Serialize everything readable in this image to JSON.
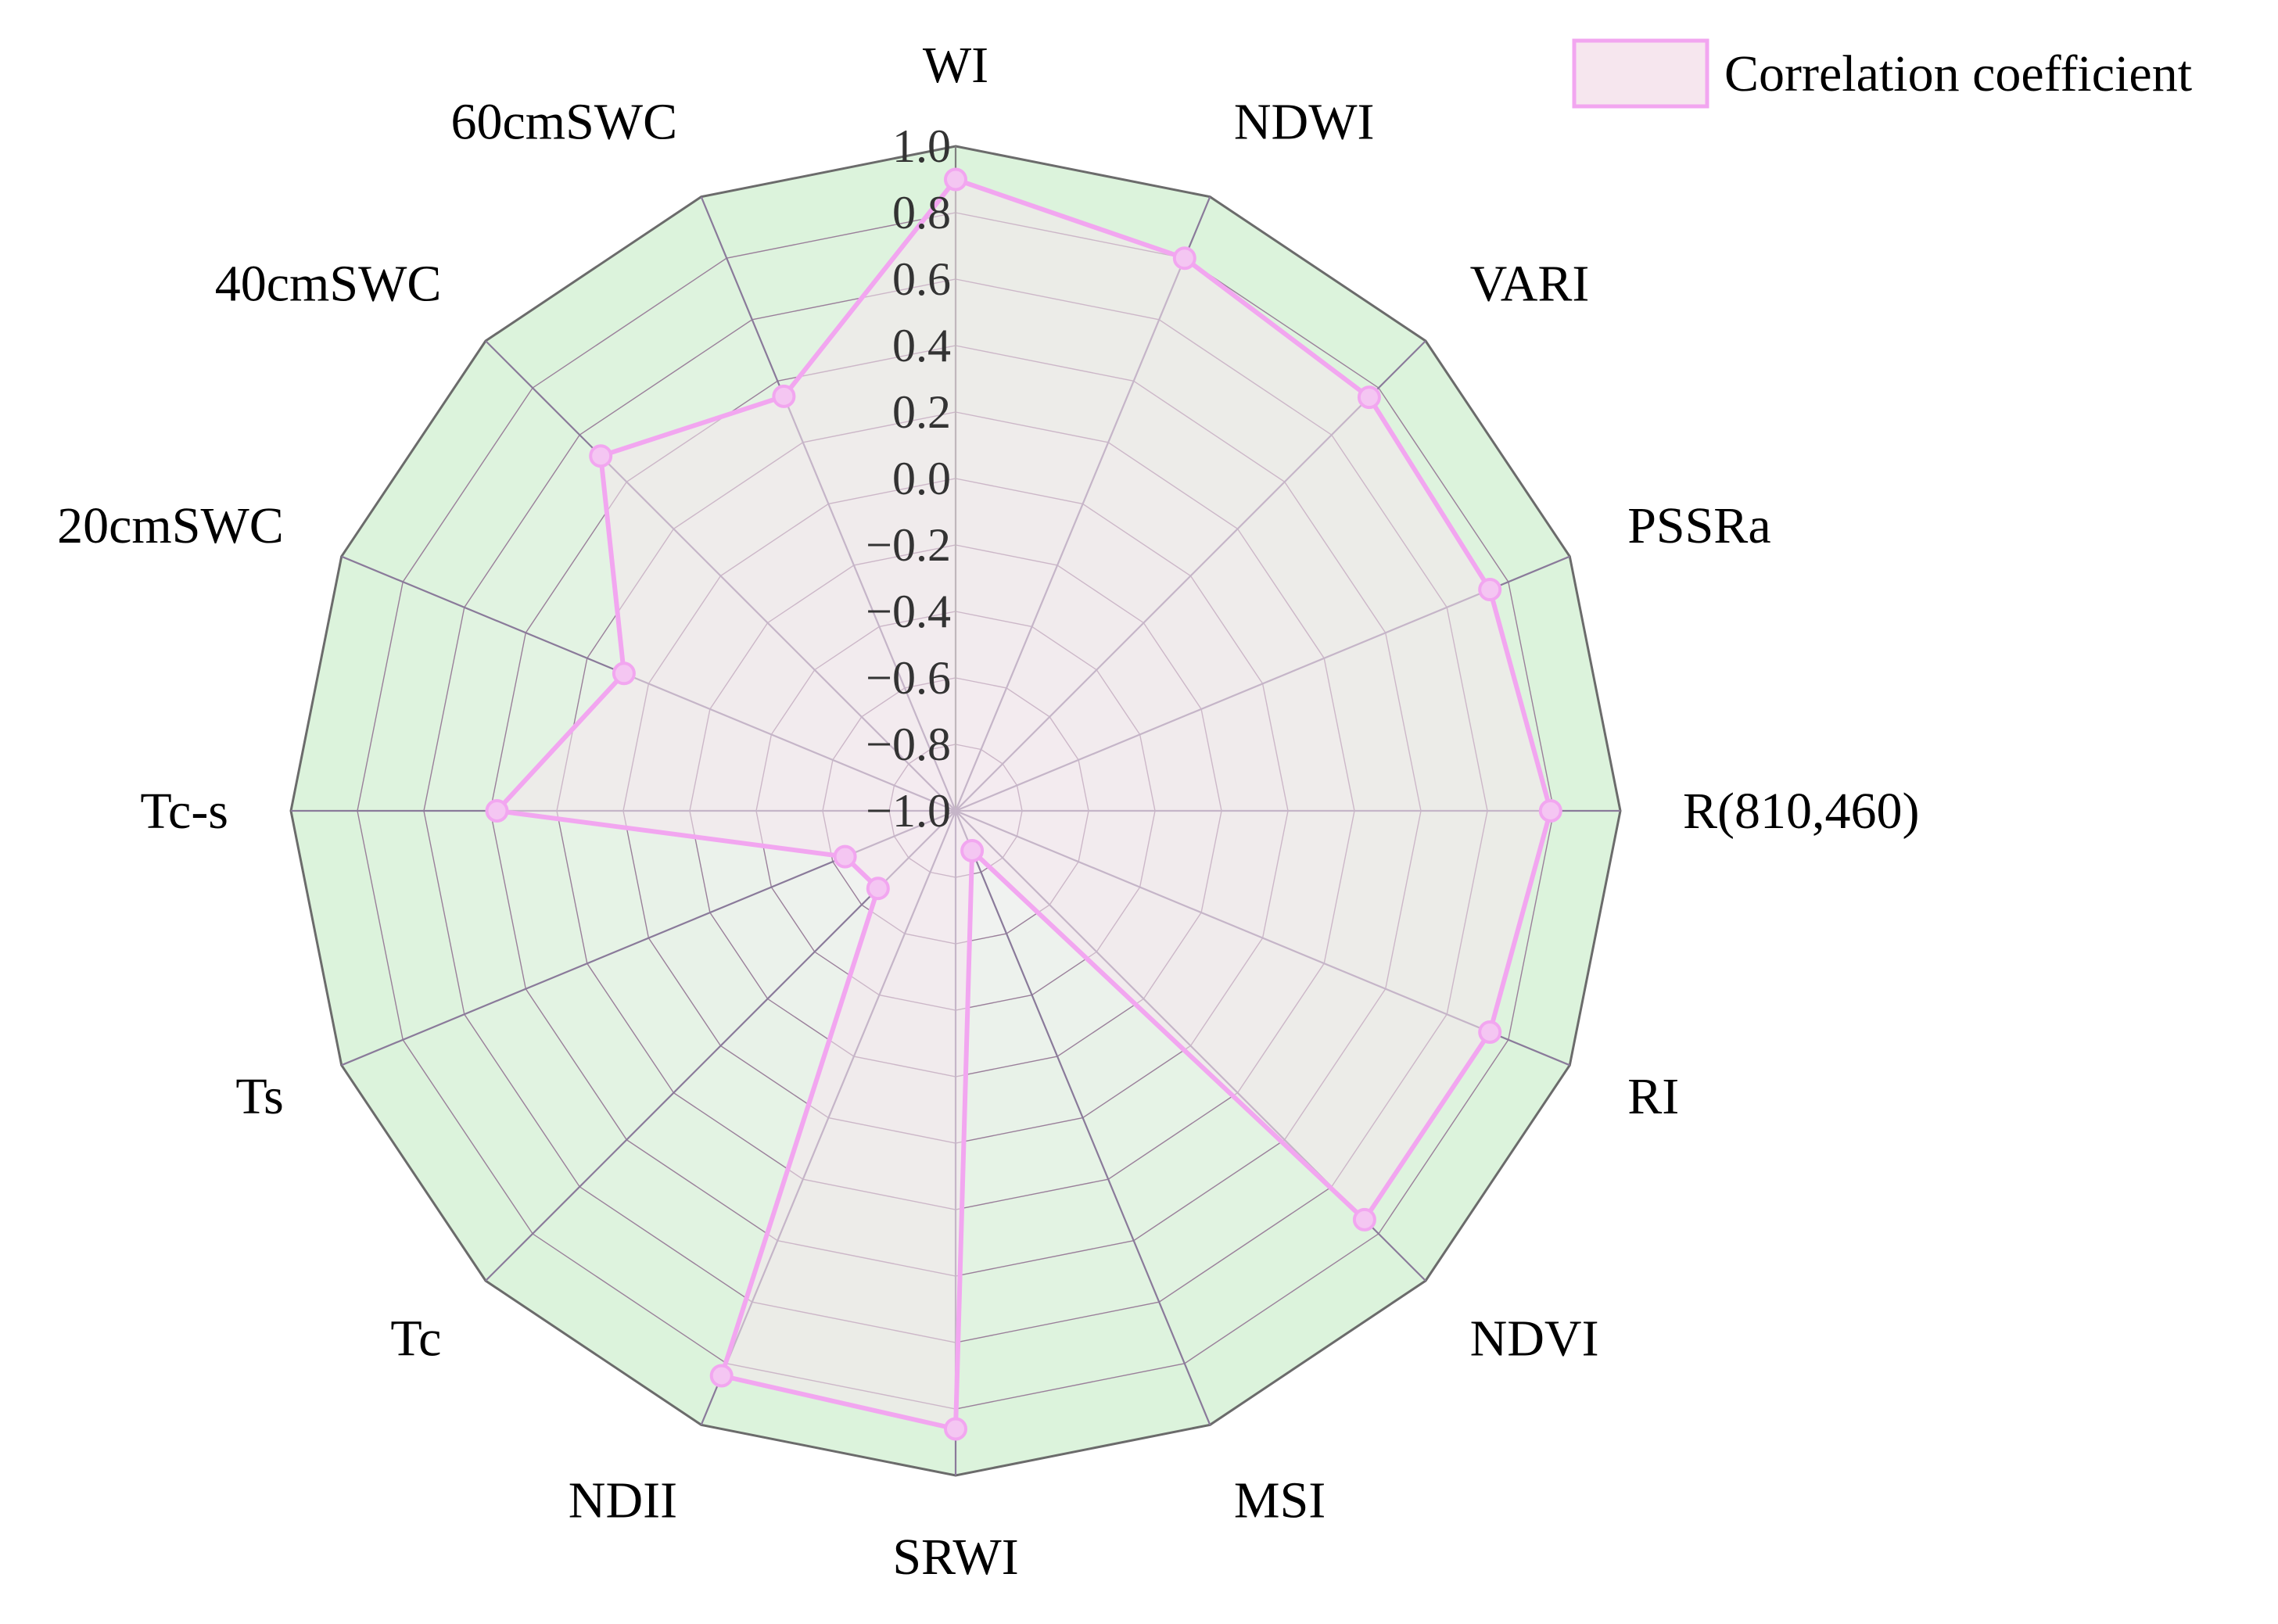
{
  "chart_data": {
    "type": "radar",
    "title": "",
    "categories": [
      "WI",
      "NDWI",
      "VARI",
      "PSSRa",
      "R(810,460)",
      "RI",
      "NDVI",
      "MSI",
      "SRWI",
      "NDII",
      "Tc",
      "Ts",
      "Tc-s",
      "20cmSWC",
      "40cmSWC",
      "60cmSWC"
    ],
    "series": [
      {
        "name": "Correlation coefficient",
        "values": [
          0.9,
          0.8,
          0.76,
          0.74,
          0.79,
          0.74,
          0.74,
          -0.87,
          0.86,
          0.84,
          -0.67,
          -0.64,
          0.38,
          0.08,
          0.51,
          0.35
        ]
      }
    ],
    "rlim": [
      -1.0,
      1.0
    ],
    "rticks": [
      "1.0",
      "0.8",
      "0.6",
      "0.4",
      "0.2",
      "0.0",
      "−0.2",
      "−0.4",
      "−0.6",
      "−0.8",
      "−1.0"
    ],
    "legend": {
      "position": "top-right",
      "label": "Correlation coefficient"
    },
    "colors": {
      "series_line": "#f2a6f0",
      "series_fill": "#f6e6ee",
      "band_outer": "#dcf3dc",
      "band_inner": "#f2f2f2",
      "grid": "#9a7f9a",
      "outer_border": "#6b6b6b",
      "marker_fill": "#f4c6f2"
    }
  }
}
